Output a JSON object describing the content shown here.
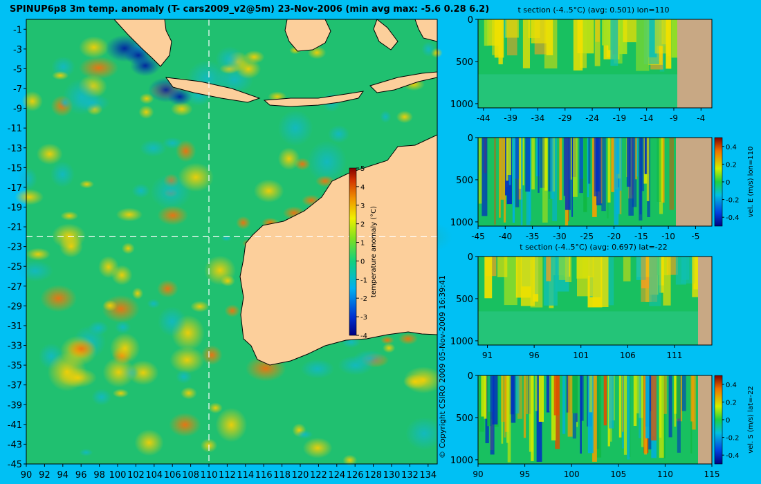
{
  "main_map": {
    "title": "SPINUP6p8 3m temp. anomaly (T- cars2009_v2@5m) 23-Nov-2006 (min avg max: -5.6 0.28 6.2)",
    "lon_ticks": [
      90,
      92,
      94,
      96,
      98,
      100,
      102,
      104,
      106,
      108,
      110,
      112,
      114,
      116,
      118,
      120,
      122,
      124,
      126,
      128,
      130,
      132,
      134
    ],
    "lat_ticks": [
      -1,
      -3,
      -5,
      -7,
      -9,
      -11,
      -13,
      -15,
      -17,
      -19,
      -21,
      -23,
      -25,
      -27,
      -29,
      -31,
      -33,
      -35,
      -37,
      -39,
      -41,
      -43,
      -45
    ],
    "section_lon": 110,
    "section_lat": -22
  },
  "colorbar": {
    "label": "temperature anomaly (°C)",
    "ticks": [
      5,
      4,
      3,
      2,
      1,
      0,
      -1,
      -2,
      -3,
      -4
    ],
    "range": [
      -4,
      5
    ]
  },
  "copyright": "© Copyright CSIRO 2009   05-Nov-2009 16:39:41",
  "colors": {
    "background": "#00c0f4",
    "land": "#fccf9b",
    "section_land": "#c8a884"
  },
  "chart_data": [
    {
      "type": "heatmap",
      "panel": "temperature anomaly map",
      "xlabel": "",
      "ylabel": "",
      "xlim": [
        90,
        135
      ],
      "ylim": [
        -45,
        0
      ],
      "zlim": [
        -4,
        5
      ],
      "title": "SPINUP6p8 3m temp. anomaly (T- cars2009_v2@5m) 23-Nov-2006 (min avg max: -5.6 0.28 6.2)"
    },
    {
      "type": "heatmap",
      "panel": "t section lon=110",
      "title": "t section (-4..5°C) (avg: 0.501) lon=110",
      "x_ticks": [
        -44,
        -39,
        -34,
        -29,
        -24,
        -19,
        -14,
        -9,
        -4
      ],
      "y_ticks": [
        0,
        500,
        1000
      ],
      "xlim": [
        -45,
        -2
      ],
      "ylim": [
        1050,
        0
      ]
    },
    {
      "type": "heatmap",
      "panel": "vel. E section lon=110",
      "title": "",
      "x_ticks": [
        -45,
        -40,
        -35,
        -30,
        -25,
        -20,
        -15,
        -10,
        -5
      ],
      "y_ticks": [
        0,
        500,
        1000
      ],
      "xlim": [
        -45,
        -2
      ],
      "ylim": [
        1050,
        0
      ],
      "colorbar_label": "vel. E (m/s) lon=110",
      "colorbar_ticks": [
        0.4,
        0.2,
        0,
        -0.2,
        -0.4
      ]
    },
    {
      "type": "heatmap",
      "panel": "t section lat=-22",
      "title": "t section (-4..5°C) (avg: 0.697) lat=-22",
      "x_ticks": [
        91,
        96,
        101,
        106,
        111
      ],
      "y_ticks": [
        0,
        500,
        1000
      ],
      "xlim": [
        90,
        115
      ],
      "ylim": [
        1050,
        0
      ]
    },
    {
      "type": "heatmap",
      "panel": "vel. S section lat=-22",
      "title": "",
      "x_ticks": [
        90,
        95,
        100,
        105,
        110,
        115
      ],
      "y_ticks": [
        0,
        500,
        1000
      ],
      "xlim": [
        90,
        115
      ],
      "ylim": [
        1050,
        0
      ],
      "colorbar_label": "vel. S (m/s) lat=-22",
      "colorbar_ticks": [
        0.4,
        0.2,
        0,
        -0.2,
        -0.4
      ]
    }
  ],
  "panels": {
    "p1": {
      "title": "t section (-4..5°C) (avg: 0.501) lon=110",
      "x_ticks": [
        -44,
        -39,
        -34,
        -29,
        -24,
        -19,
        -14,
        -9,
        -4
      ],
      "y_ticks": [
        0,
        500,
        1000
      ]
    },
    "p2": {
      "title": "",
      "x_ticks": [
        -45,
        -40,
        -35,
        -30,
        -25,
        -20,
        -15,
        -10,
        -5
      ],
      "y_ticks": [
        0,
        500,
        1000
      ],
      "cb_label": "vel. E (m/s) lon=110",
      "cb_ticks": [
        0.4,
        0.2,
        0,
        -0.2,
        -0.4
      ]
    },
    "p3": {
      "title": "t section (-4..5°C) (avg: 0.697) lat=-22",
      "x_ticks": [
        91,
        96,
        101,
        106,
        111
      ],
      "y_ticks": [
        0,
        500,
        1000
      ]
    },
    "p4": {
      "title": "",
      "x_ticks": [
        90,
        95,
        100,
        105,
        110,
        115
      ],
      "y_ticks": [
        0,
        500,
        1000
      ],
      "cb_label": "vel. S (m/s) lat=-22",
      "cb_ticks": [
        0.4,
        0.2,
        0,
        -0.2,
        -0.4
      ]
    }
  }
}
